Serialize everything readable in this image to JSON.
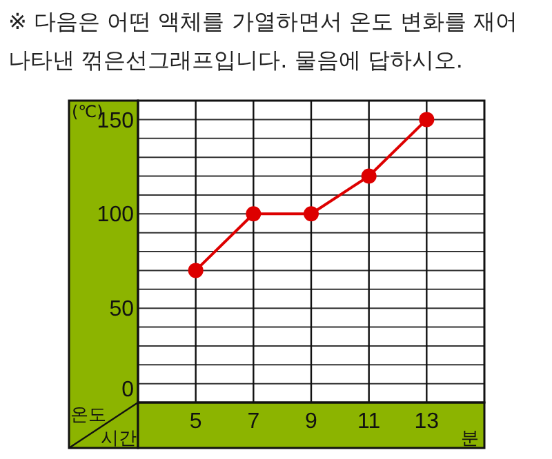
{
  "chart_data": {
    "type": "line",
    "title": "※ 다음은 어떤 액체를 가열하면서 온도 변화를 재어 나타낸 꺾은선그래프입니다. 물음에 답하시오.",
    "xlabel": "시간",
    "ylabel": "온도",
    "annotations": [
      "(℃)",
      "분"
    ],
    "x": [
      5,
      7,
      9,
      11,
      13
    ],
    "series": [
      {
        "color": "#dd0000",
        "values": [
          70,
          100,
          100,
          120,
          150
        ]
      }
    ],
    "xlim": [
      3,
      15
    ],
    "xticks": [
      5,
      7,
      9,
      11,
      13
    ],
    "ylim": [
      0,
      160
    ],
    "yticks": [
      0,
      {
        "value": 10,
        "label": null
      },
      {
        "value": 20,
        "label": null
      },
      {
        "value": 30,
        "label": null
      },
      {
        "value": 40,
        "label": null
      },
      50,
      {
        "value": 60,
        "label": null
      },
      {
        "value": 70,
        "label": null
      },
      {
        "value": 80,
        "label": null
      },
      {
        "value": 90,
        "label": null
      },
      100,
      {
        "value": 110,
        "label": null
      },
      {
        "value": 120,
        "label": null
      },
      {
        "value": 130,
        "label": null
      },
      {
        "value": 140,
        "label": null
      },
      150
    ],
    "grid": true,
    "marker": "circle",
    "line_style": "solid"
  }
}
